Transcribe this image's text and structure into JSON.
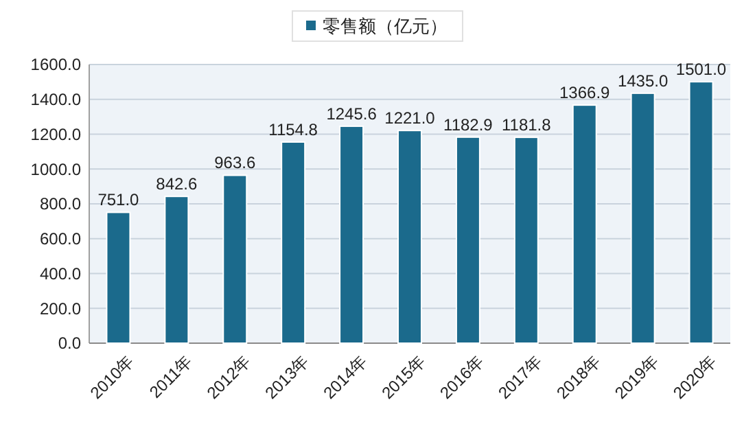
{
  "chart_data": {
    "type": "bar",
    "categories": [
      "2010年",
      "2011年",
      "2012年",
      "2013年",
      "2014年",
      "2015年",
      "2016年",
      "2017年",
      "2018年",
      "2019年",
      "2020年"
    ],
    "series": [
      {
        "name": "零售额（亿元）",
        "color": "#1b6a8c",
        "values": [
          751.0,
          842.6,
          963.6,
          1154.8,
          1245.6,
          1221.0,
          1182.9,
          1181.8,
          1366.9,
          1435.0,
          1501.0
        ]
      }
    ],
    "value_labels": [
      "751.0",
      "842.6",
      "963.6",
      "1154.8",
      "1245.6",
      "1221.0",
      "1182.9",
      "1181.8",
      "1366.9",
      "1435.0",
      "1501.0"
    ],
    "ylim": [
      0,
      1600
    ],
    "yticks": [
      {
        "value": 0,
        "label": "0.0"
      },
      {
        "value": 200,
        "label": "200.0"
      },
      {
        "value": 400,
        "label": "400.0"
      },
      {
        "value": 600,
        "label": "600.0"
      },
      {
        "value": 800,
        "label": "800.0"
      },
      {
        "value": 1000,
        "label": "1000.0"
      },
      {
        "value": 1200,
        "label": "1200.0"
      },
      {
        "value": 1400,
        "label": "1400.0"
      },
      {
        "value": 1600,
        "label": "1600.0"
      }
    ],
    "grid": "y",
    "legend": "top"
  }
}
